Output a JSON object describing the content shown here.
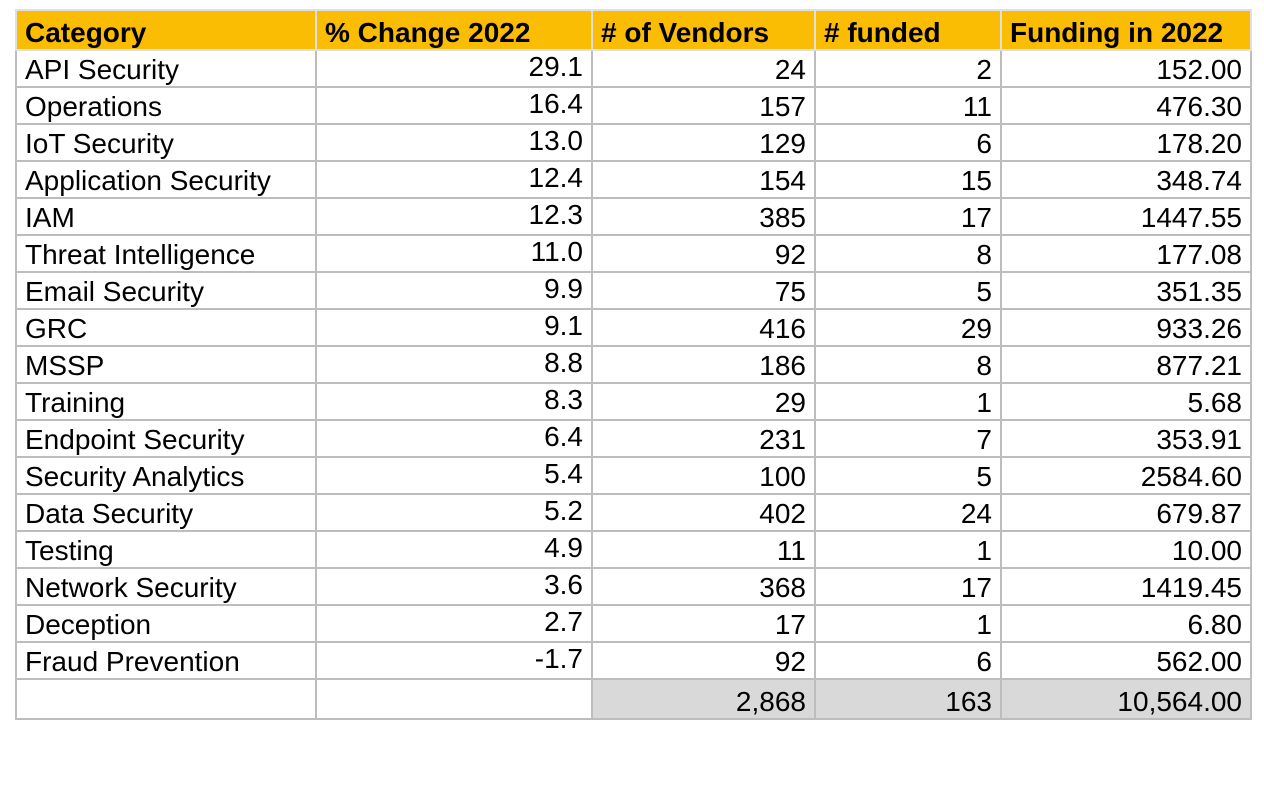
{
  "columns": [
    "Category",
    "% Change 2022",
    "# of Vendors",
    "# funded",
    "Funding in 2022"
  ],
  "rows": [
    {
      "category": "API Security",
      "pct": "29.1",
      "vendors": "24",
      "funded": "2",
      "funding": "152.00"
    },
    {
      "category": "Operations",
      "pct": "16.4",
      "vendors": "157",
      "funded": "11",
      "funding": "476.30"
    },
    {
      "category": "IoT Security",
      "pct": "13.0",
      "vendors": "129",
      "funded": "6",
      "funding": "178.20"
    },
    {
      "category": "Application Security",
      "pct": "12.4",
      "vendors": "154",
      "funded": "15",
      "funding": "348.74"
    },
    {
      "category": "IAM",
      "pct": "12.3",
      "vendors": "385",
      "funded": "17",
      "funding": "1447.55"
    },
    {
      "category": "Threat Intelligence",
      "pct": "11.0",
      "vendors": "92",
      "funded": "8",
      "funding": "177.08"
    },
    {
      "category": "Email Security",
      "pct": "9.9",
      "vendors": "75",
      "funded": "5",
      "funding": "351.35"
    },
    {
      "category": "GRC",
      "pct": "9.1",
      "vendors": "416",
      "funded": "29",
      "funding": "933.26"
    },
    {
      "category": "MSSP",
      "pct": "8.8",
      "vendors": "186",
      "funded": "8",
      "funding": "877.21"
    },
    {
      "category": "Training",
      "pct": "8.3",
      "vendors": "29",
      "funded": "1",
      "funding": "5.68"
    },
    {
      "category": "Endpoint Security",
      "pct": "6.4",
      "vendors": "231",
      "funded": "7",
      "funding": "353.91"
    },
    {
      "category": "Security Analytics",
      "pct": "5.4",
      "vendors": "100",
      "funded": "5",
      "funding": "2584.60"
    },
    {
      "category": "Data Security",
      "pct": "5.2",
      "vendors": "402",
      "funded": "24",
      "funding": "679.87"
    },
    {
      "category": "Testing",
      "pct": "4.9",
      "vendors": "11",
      "funded": "1",
      "funding": "10.00"
    },
    {
      "category": "Network Security",
      "pct": "3.6",
      "vendors": "368",
      "funded": "17",
      "funding": "1419.45"
    },
    {
      "category": "Deception",
      "pct": "2.7",
      "vendors": "17",
      "funded": "1",
      "funding": "6.80"
    },
    {
      "category": "Fraud Prevention",
      "pct": "-1.7",
      "vendors": "92",
      "funded": "6",
      "funding": "562.00"
    }
  ],
  "totals": {
    "category": "",
    "pct": "",
    "vendors": "2,868",
    "funded": "163",
    "funding": "10,564.00"
  },
  "colors": {
    "header_bg": "#fbbc04",
    "total_bg": "#d9d9d9",
    "grid": "#bdbdbd"
  }
}
